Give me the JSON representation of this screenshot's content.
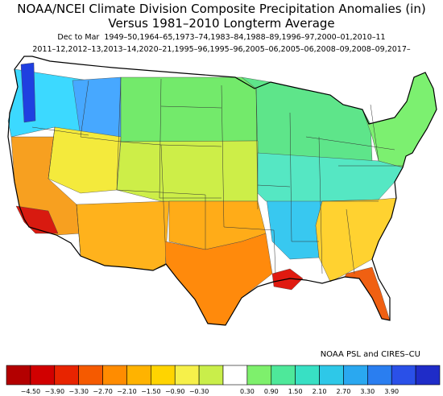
{
  "title_line1": "NOAA/NCEI Climate Division Composite Precipitation Anomalies (in)",
  "title_line2": "Versus 1981–2010 Longterm Average",
  "subtitle_line1": "Dec to Mar  1949–50,1964–65,1973–74,1983–84,1988–89,1996–97,2000–01,2010–11",
  "subtitle_line2": "2011–12,2012–13,2013–14,2020–21,1995–96,1995–96,2005–06,2005–06,2008–09,2008–09,2017–",
  "credit": "NOAA PSL and CIRES–CU",
  "colorbar": {
    "labels": [
      "−4.50",
      "−3.90",
      "−3.30",
      "−2.70",
      "−2.10",
      "−1.50",
      "−0.90",
      "−0.30",
      "0.30",
      "0.90",
      "1.50",
      "2.10",
      "2.70",
      "3.30",
      "3.90"
    ],
    "colors": [
      "#b30000",
      "#d10000",
      "#e82400",
      "#f55a00",
      "#ff8c00",
      "#ffb300",
      "#ffd400",
      "#f6f04a",
      "#c9ee4a",
      "#ffffff",
      "#7ef06c",
      "#4ee89a",
      "#38e0c4",
      "#2ec8e8",
      "#2aa8f0",
      "#2a7ef0",
      "#2a50e8",
      "#1f2cc8"
    ]
  },
  "regions": [
    {
      "name": "pacific-northwest",
      "color": "#3cd9ff"
    },
    {
      "name": "olympic-cascades",
      "color": "#1f3fe0"
    },
    {
      "name": "northern-rockies",
      "color": "#47a8ff"
    },
    {
      "name": "northern-plains",
      "color": "#73ea6b"
    },
    {
      "name": "great-lakes",
      "color": "#5ee58a"
    },
    {
      "name": "northeast",
      "color": "#7cf070"
    },
    {
      "name": "california",
      "color": "#f7a020"
    },
    {
      "name": "southern-california",
      "color": "#d81a10"
    },
    {
      "name": "great-basin",
      "color": "#f4ea3c"
    },
    {
      "name": "southwest",
      "color": "#ffb21c"
    },
    {
      "name": "central-plains",
      "color": "#cdee48"
    },
    {
      "name": "southern-plains",
      "color": "#ffac18"
    },
    {
      "name": "texas-coast",
      "color": "#ff8a0c"
    },
    {
      "name": "lower-mississippi-valley",
      "color": "#38c8f0"
    },
    {
      "name": "mid-south",
      "color": "#55e7c3"
    },
    {
      "name": "southeast",
      "color": "#ffd230"
    },
    {
      "name": "florida",
      "color": "#f06012"
    },
    {
      "name": "louisiana-coast",
      "color": "#e01a10"
    }
  ]
}
